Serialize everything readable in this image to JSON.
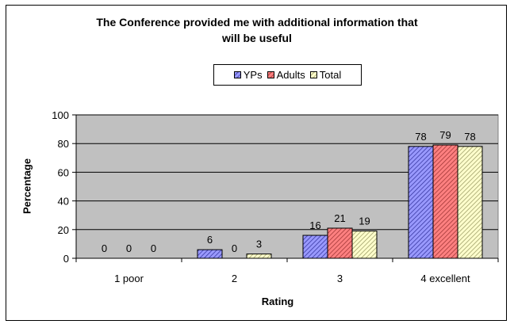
{
  "chart_data": {
    "type": "bar",
    "title_lines": [
      "The Conference provided me with additional information that",
      "will be useful"
    ],
    "xlabel": "Rating",
    "ylabel": "Percentage",
    "categories": [
      "1 poor",
      "2",
      "3",
      "4 excellent"
    ],
    "series": [
      {
        "name": "YPs",
        "values": [
          0,
          6,
          16,
          78
        ],
        "color": "#9999ff",
        "stripe": "#333399"
      },
      {
        "name": "Adults",
        "values": [
          0,
          0,
          21,
          79
        ],
        "color": "#ff8080",
        "stripe": "#993333"
      },
      {
        "name": "Total",
        "values": [
          0,
          3,
          19,
          78
        ],
        "color": "#ffffcc",
        "stripe": "#999966"
      }
    ],
    "ylim": [
      0,
      100
    ],
    "yticks": [
      0,
      20,
      40,
      60,
      80,
      100
    ],
    "grid": true,
    "legend_position": "top-center",
    "plot_background": "#c0c0c0"
  }
}
